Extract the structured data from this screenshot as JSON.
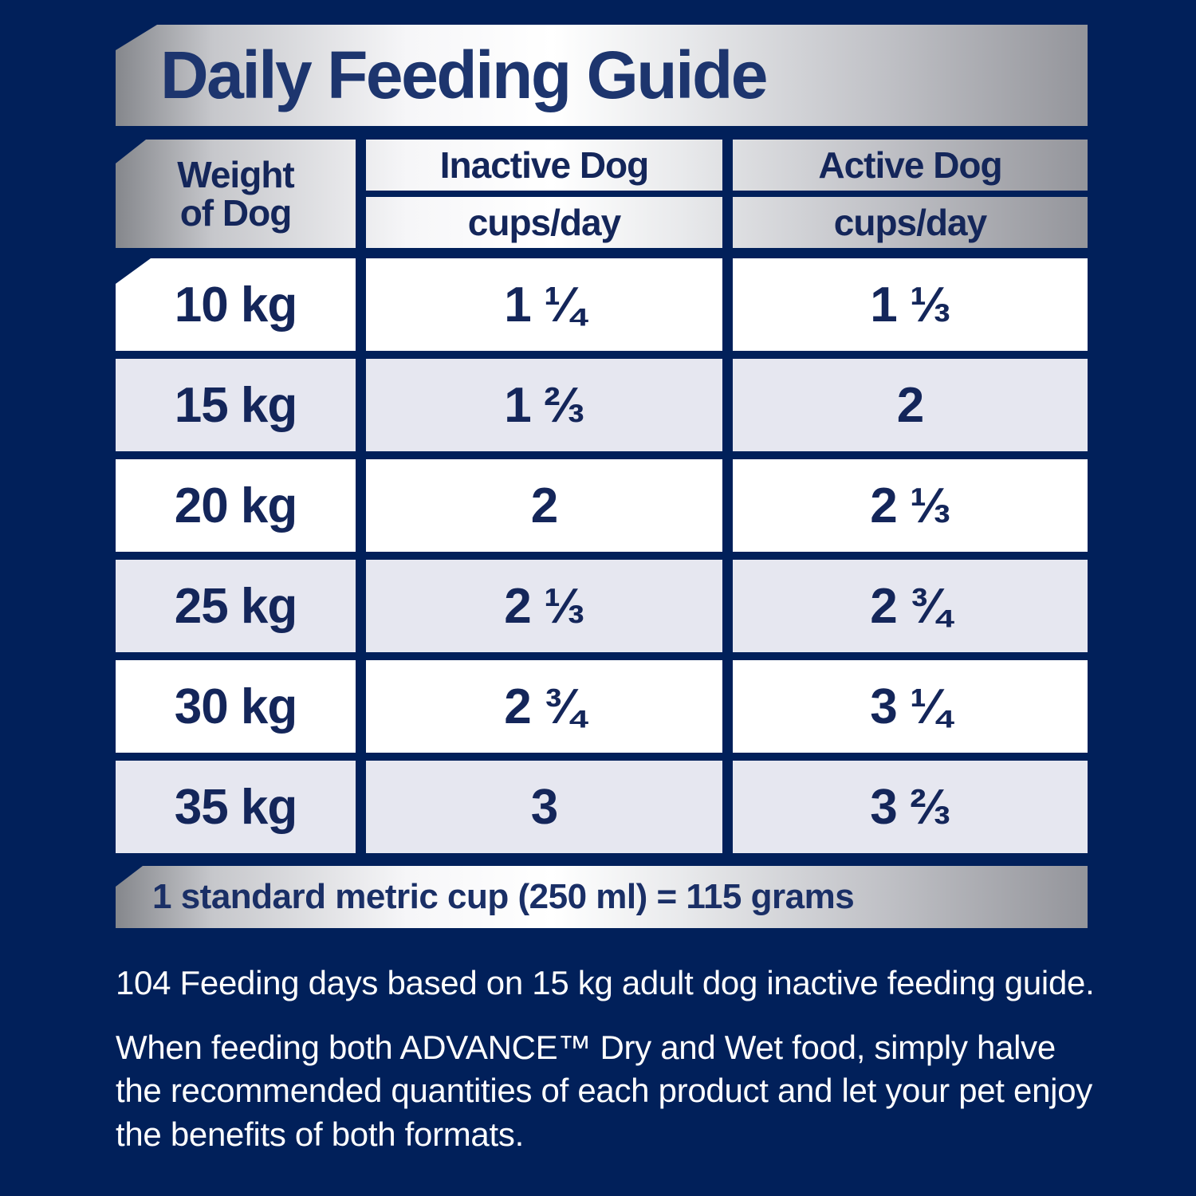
{
  "title": "Daily Feeding Guide",
  "table": {
    "weight_header": "Weight\nof Dog",
    "columns": [
      {
        "label": "Inactive Dog",
        "unit": "cups/day"
      },
      {
        "label": "Active Dog",
        "unit": "cups/day"
      }
    ],
    "rows": [
      {
        "weight": "10 kg",
        "inactive": "1 ¼",
        "active": "1 ⅓"
      },
      {
        "weight": "15 kg",
        "inactive": "1 ⅔",
        "active": "2"
      },
      {
        "weight": "20 kg",
        "inactive": "2",
        "active": "2 ⅓"
      },
      {
        "weight": "25 kg",
        "inactive": "2 ⅓",
        "active": "2 ¾"
      },
      {
        "weight": "30 kg",
        "inactive": "2 ¾",
        "active": "3 ¼"
      },
      {
        "weight": "35 kg",
        "inactive": "3",
        "active": "3 ⅔"
      }
    ]
  },
  "footer_banner": "1 standard metric cup (250 ml) = 115 grams",
  "notes": [
    "104 Feeding days based on 15 kg adult dog inactive feeding guide.",
    "When feeding both ADVANCE™ Dry and Wet food, simply halve the recommended quantities of each product and let your pet enjoy the benefits of both formats."
  ],
  "colors": {
    "background_navy": "#01205A",
    "text_navy": "#14265A",
    "banner_text_navy": "#1D356E",
    "silver_light": "#FFFFFF",
    "silver_dark": "#8E9096",
    "row_alt": "#E6E7F0",
    "row_white": "#FFFFFF",
    "note_text": "#FFFFFF"
  }
}
